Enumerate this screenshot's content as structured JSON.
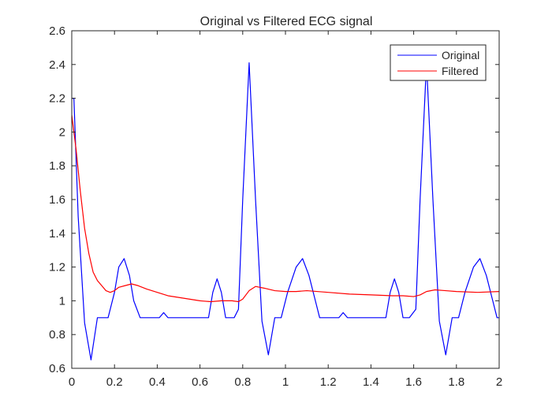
{
  "chart_data": {
    "type": "line",
    "title": "Original vs Filtered ECG signal",
    "xlabel": "",
    "ylabel": "",
    "xlim": [
      0,
      2
    ],
    "ylim": [
      0.6,
      2.6
    ],
    "xticks": [
      0,
      0.2,
      0.4,
      0.6,
      0.8,
      1,
      1.2,
      1.4,
      1.6,
      1.8,
      2
    ],
    "yticks": [
      0.6,
      0.8,
      1,
      1.2,
      1.4,
      1.6,
      1.8,
      2,
      2.2,
      2.4,
      2.6
    ],
    "xtick_labels": [
      "0",
      "0.2",
      "0.4",
      "0.6",
      "0.8",
      "1",
      "1.2",
      "1.4",
      "1.6",
      "1.8",
      "2"
    ],
    "ytick_labels": [
      "0.6",
      "0.8",
      "1",
      "1.2",
      "1.4",
      "1.6",
      "1.8",
      "2",
      "2.2",
      "2.4",
      "2.6"
    ],
    "grid": false,
    "legend_position": "top-right",
    "series": [
      {
        "name": "Original",
        "color": "#0000ff",
        "x": [
          0,
          0.01,
          0.03,
          0.06,
          0.09,
          0.12,
          0.17,
          0.2,
          0.22,
          0.245,
          0.27,
          0.29,
          0.32,
          0.34,
          0.41,
          0.43,
          0.45,
          0.64,
          0.66,
          0.68,
          0.7,
          0.72,
          0.76,
          0.78,
          0.8,
          0.83,
          0.86,
          0.89,
          0.92,
          0.95,
          0.98,
          1.01,
          1.05,
          1.08,
          1.11,
          1.14,
          1.16,
          1.25,
          1.27,
          1.29,
          1.47,
          1.49,
          1.51,
          1.53,
          1.55,
          1.58,
          1.61,
          1.63,
          1.66,
          1.69,
          1.72,
          1.75,
          1.78,
          1.81,
          1.84,
          1.88,
          1.91,
          1.94,
          1.97,
          1.99,
          2.0
        ],
        "y": [
          2.2,
          2.2,
          1.5,
          0.87,
          0.65,
          0.9,
          0.9,
          1.05,
          1.2,
          1.25,
          1.15,
          1.0,
          0.9,
          0.9,
          0.9,
          0.93,
          0.9,
          0.9,
          1.05,
          1.13,
          1.05,
          0.9,
          0.9,
          0.95,
          1.6,
          2.41,
          1.6,
          0.88,
          0.68,
          0.9,
          0.9,
          1.05,
          1.2,
          1.25,
          1.15,
          1.0,
          0.9,
          0.9,
          0.93,
          0.9,
          0.9,
          1.05,
          1.13,
          1.05,
          0.9,
          0.9,
          0.95,
          1.6,
          2.41,
          1.6,
          0.88,
          0.68,
          0.9,
          0.9,
          1.05,
          1.2,
          1.25,
          1.15,
          1.0,
          0.9,
          0.9
        ]
      },
      {
        "name": "Filtered",
        "color": "#ff0000",
        "x": [
          0,
          0.02,
          0.04,
          0.06,
          0.08,
          0.1,
          0.12,
          0.14,
          0.16,
          0.18,
          0.2,
          0.22,
          0.25,
          0.28,
          0.31,
          0.35,
          0.4,
          0.45,
          0.5,
          0.55,
          0.6,
          0.65,
          0.7,
          0.75,
          0.78,
          0.8,
          0.83,
          0.86,
          0.9,
          0.95,
          1.0,
          1.05,
          1.1,
          1.2,
          1.3,
          1.4,
          1.5,
          1.55,
          1.6,
          1.63,
          1.66,
          1.7,
          1.75,
          1.8,
          1.9,
          2.0
        ],
        "y": [
          2.1,
          1.9,
          1.65,
          1.43,
          1.28,
          1.17,
          1.12,
          1.09,
          1.06,
          1.05,
          1.06,
          1.08,
          1.09,
          1.1,
          1.09,
          1.07,
          1.05,
          1.03,
          1.02,
          1.01,
          1.0,
          0.995,
          1.0,
          1.0,
          0.995,
          1.01,
          1.06,
          1.085,
          1.075,
          1.06,
          1.055,
          1.055,
          1.06,
          1.05,
          1.04,
          1.035,
          1.03,
          1.03,
          1.025,
          1.035,
          1.055,
          1.065,
          1.06,
          1.055,
          1.05,
          1.055
        ]
      }
    ]
  }
}
